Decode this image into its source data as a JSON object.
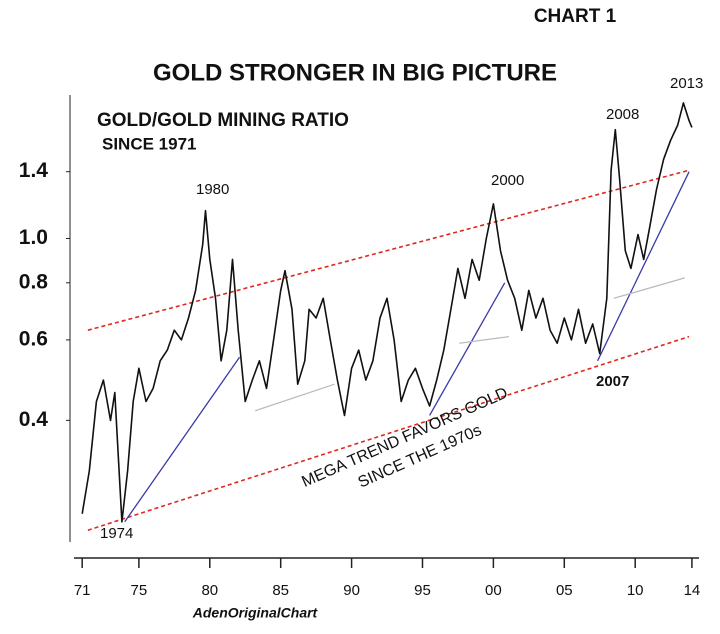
{
  "chart_data": {
    "type": "line",
    "header": "CHART 1",
    "title": "GOLD STRONGER IN BIG PICTURE",
    "subtitle": "GOLD/GOLD MINING RATIO",
    "subtitle2": "SINCE 1971",
    "footer": "AdenOriginalChart",
    "log_scale": true,
    "x": [
      1971.0,
      1971.5,
      1972.0,
      1972.5,
      1973.0,
      1973.3,
      1973.8,
      1974.2,
      1974.6,
      1975.0,
      1975.5,
      1976.0,
      1976.5,
      1977.0,
      1977.5,
      1978.0,
      1978.5,
      1979.0,
      1979.5,
      1979.7,
      1980.0,
      1980.4,
      1980.8,
      1981.2,
      1981.6,
      1982.0,
      1982.5,
      1983.0,
      1983.5,
      1984.0,
      1984.5,
      1985.0,
      1985.3,
      1985.8,
      1986.2,
      1986.7,
      1987.0,
      1987.5,
      1988.0,
      1988.5,
      1989.0,
      1989.5,
      1990.0,
      1990.5,
      1991.0,
      1991.5,
      1992.0,
      1992.5,
      1993.0,
      1993.5,
      1994.0,
      1994.5,
      1995.0,
      1995.5,
      1996.0,
      1996.5,
      1997.0,
      1997.5,
      1998.0,
      1998.5,
      1999.0,
      1999.5,
      2000.0,
      2000.5,
      2001.0,
      2001.5,
      2002.0,
      2002.5,
      2003.0,
      2003.5,
      2004.0,
      2004.5,
      2005.0,
      2005.5,
      2006.0,
      2006.5,
      2007.0,
      2007.5,
      2008.0,
      2008.3,
      2008.6,
      2008.9,
      2009.3,
      2009.7,
      2010.2,
      2010.6,
      2011.0,
      2011.5,
      2012.0,
      2012.5,
      2013.0,
      2013.4,
      2013.8,
      2014.0
    ],
    "series": [
      {
        "color": "#111111",
        "values": [
          0.25,
          0.31,
          0.44,
          0.49,
          0.4,
          0.46,
          0.24,
          0.31,
          0.44,
          0.52,
          0.44,
          0.47,
          0.54,
          0.57,
          0.63,
          0.6,
          0.67,
          0.77,
          0.97,
          1.15,
          0.9,
          0.74,
          0.54,
          0.63,
          0.9,
          0.63,
          0.44,
          0.49,
          0.54,
          0.47,
          0.6,
          0.77,
          0.85,
          0.7,
          0.48,
          0.54,
          0.7,
          0.67,
          0.74,
          0.6,
          0.49,
          0.41,
          0.52,
          0.57,
          0.49,
          0.54,
          0.67,
          0.74,
          0.6,
          0.44,
          0.49,
          0.52,
          0.47,
          0.43,
          0.49,
          0.57,
          0.7,
          0.86,
          0.74,
          0.9,
          0.81,
          1.0,
          1.19,
          0.94,
          0.81,
          0.74,
          0.63,
          0.77,
          0.67,
          0.74,
          0.63,
          0.59,
          0.67,
          0.6,
          0.7,
          0.59,
          0.65,
          0.56,
          0.74,
          1.41,
          1.73,
          1.35,
          0.94,
          0.86,
          1.02,
          0.9,
          1.05,
          1.28,
          1.49,
          1.64,
          1.77,
          1.98,
          1.81,
          1.75
        ]
      }
    ],
    "trend_lines": [
      {
        "color": "#e0281e",
        "dashed": true,
        "x": [
          1971.4,
          2013.8
        ],
        "values": [
          0.63,
          1.41
        ]
      },
      {
        "color": "#e0281e",
        "dashed": true,
        "x": [
          1971.4,
          2013.8
        ],
        "values": [
          0.23,
          0.61
        ]
      },
      {
        "color": "#3a3aa8",
        "dashed": false,
        "x": [
          1974.0,
          1982.1
        ],
        "values": [
          0.24,
          0.55
        ]
      },
      {
        "color": "#3a3aa8",
        "dashed": false,
        "x": [
          1995.5,
          2000.8
        ],
        "values": [
          0.41,
          0.8
        ]
      },
      {
        "color": "#3a3aa8",
        "dashed": false,
        "x": [
          2007.35,
          2013.8
        ],
        "values": [
          0.54,
          1.4
        ]
      },
      {
        "color": "#bbbbbb",
        "dashed": false,
        "x": [
          1983.2,
          1988.8
        ],
        "values": [
          0.42,
          0.48
        ]
      },
      {
        "color": "#bbbbbb",
        "dashed": false,
        "x": [
          1997.6,
          2001.1
        ],
        "values": [
          0.59,
          0.61
        ]
      },
      {
        "color": "#bbbbbb",
        "dashed": false,
        "x": [
          2008.5,
          2013.5
        ],
        "values": [
          0.74,
          0.82
        ]
      }
    ],
    "annotations": [
      "1980",
      "2000",
      "2008",
      "2013",
      "1974",
      "2007",
      "MEGA TREND FAVORS GOLD",
      "SINCE THE 1970s"
    ],
    "xlim": [
      1970,
      2014.5
    ],
    "ylim": [
      0.2,
      2.06
    ],
    "xticks": [
      {
        "value": 1971,
        "label": "71"
      },
      {
        "value": 1975,
        "label": "75"
      },
      {
        "value": 1980,
        "label": "80"
      },
      {
        "value": 1985,
        "label": "85"
      },
      {
        "value": 1990,
        "label": "90"
      },
      {
        "value": 1995,
        "label": "95"
      },
      {
        "value": 2000,
        "label": "00"
      },
      {
        "value": 2005,
        "label": "05"
      },
      {
        "value": 2010,
        "label": "10"
      },
      {
        "value": 2014,
        "label": "14"
      }
    ],
    "yticks": [
      0.4,
      0.6,
      0.8,
      {
        "value": 1,
        "label": "1.0"
      },
      1.4
    ]
  }
}
